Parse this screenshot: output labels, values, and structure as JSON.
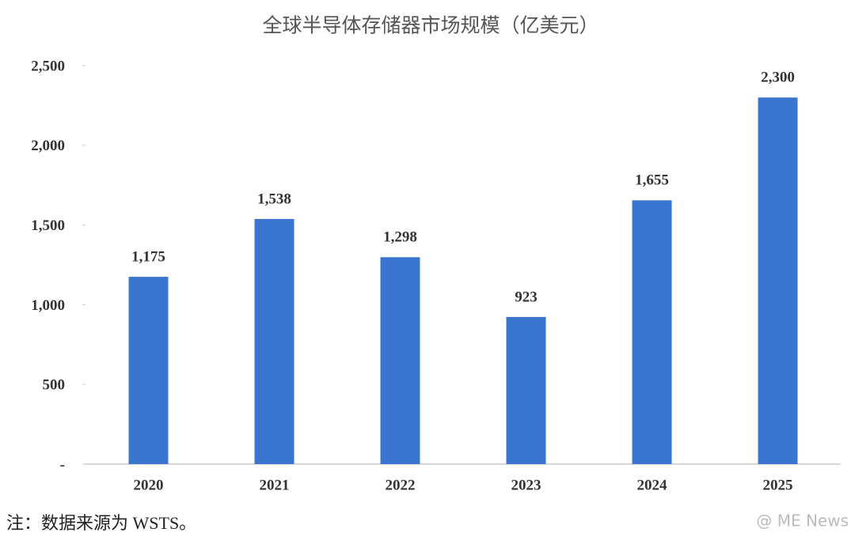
{
  "chart_data": {
    "type": "bar",
    "title": "全球半导体存储器市场规模（亿美元）",
    "categories": [
      "2020",
      "2021",
      "2022",
      "2023",
      "2024",
      "2025"
    ],
    "values": [
      1175,
      1538,
      1298,
      923,
      1655,
      2300
    ],
    "value_labels": [
      "1,175",
      "1,538",
      "1,298",
      "923",
      "1,655",
      "2,300"
    ],
    "color": "#3a75d0",
    "ylim": [
      0,
      2500
    ],
    "yticks": [
      {
        "value": 0,
        "label": "-"
      },
      500,
      {
        "value": 1000,
        "label": "1,000"
      },
      {
        "value": 1500,
        "label": "1,500"
      },
      {
        "value": 2000,
        "label": "2,000"
      },
      {
        "value": 2500,
        "label": "2,500"
      }
    ],
    "grid": false
  },
  "footnote": "注：数据来源为 WSTS。",
  "watermark": "@ ME News"
}
